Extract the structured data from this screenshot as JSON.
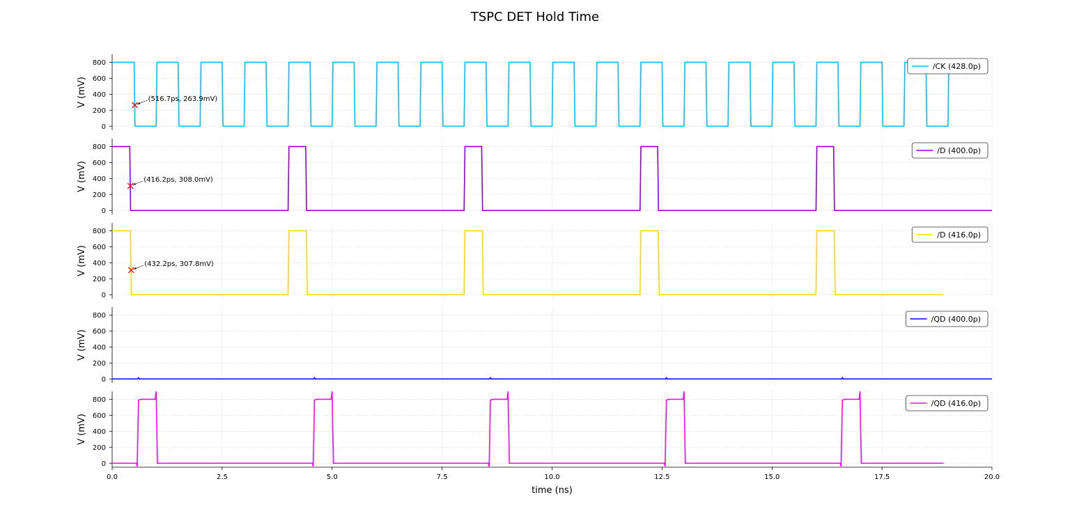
{
  "title": "TSPC DET Hold Time",
  "chart_data": [
    {
      "type": "line",
      "ylabel": "V (mV)",
      "xlim": [
        0,
        20
      ],
      "ylim": [
        -50,
        900
      ],
      "yticks": [
        0,
        200,
        400,
        600,
        800
      ],
      "xticks": [
        0,
        2.5,
        5,
        7.5,
        10,
        12.5,
        15,
        17.5,
        20
      ],
      "grid": true,
      "legend": "upper right",
      "x": [
        0,
        0.5,
        0.52,
        1,
        1.02,
        1.5,
        1.52,
        2,
        2.02,
        2.5,
        2.52,
        3,
        3.02,
        3.5,
        3.52,
        4,
        4.02,
        4.5,
        4.52,
        5,
        5.02,
        5.5,
        5.52,
        6,
        6.02,
        6.5,
        6.52,
        7,
        7.02,
        7.5,
        7.52,
        8,
        8.02,
        8.5,
        8.52,
        9,
        9.02,
        9.5,
        9.52,
        10,
        10.02,
        10.5,
        10.52,
        11,
        11.02,
        11.5,
        11.52,
        12,
        12.02,
        12.5,
        12.52,
        13,
        13.02,
        13.5,
        13.52,
        14,
        14.02,
        14.5,
        14.52,
        15,
        15.02,
        15.5,
        15.52,
        16,
        16.02,
        16.5,
        16.52,
        17,
        17.02,
        17.5,
        17.52,
        18,
        18.02,
        18.5,
        18.52,
        19,
        19.02
      ],
      "series": [
        {
          "name": "/CK (428.0p)",
          "color": "#00bfff",
          "values": [
            800,
            800,
            0,
            0,
            800,
            800,
            0,
            0,
            800,
            800,
            0,
            0,
            800,
            800,
            0,
            0,
            800,
            800,
            0,
            0,
            800,
            800,
            0,
            0,
            800,
            800,
            0,
            0,
            800,
            800,
            0,
            0,
            800,
            800,
            0,
            0,
            800,
            800,
            0,
            0,
            800,
            800,
            0,
            0,
            800,
            800,
            0,
            0,
            800,
            800,
            0,
            0,
            800,
            800,
            0,
            0,
            800,
            800,
            0,
            0,
            800,
            800,
            0,
            0,
            800,
            800,
            0,
            0,
            800,
            800,
            0,
            0,
            800,
            800,
            0,
            0,
            800
          ]
        }
      ],
      "annotations": [
        {
          "text": "(516.7ps, 263.9mV)",
          "x": 0.5167,
          "y": 263.9
        }
      ]
    },
    {
      "type": "line",
      "ylabel": "V (mV)",
      "xlim": [
        0,
        20
      ],
      "ylim": [
        -50,
        900
      ],
      "yticks": [
        0,
        200,
        400,
        600,
        800
      ],
      "xticks": [
        0,
        2.5,
        5,
        7.5,
        10,
        12.5,
        15,
        17.5,
        20
      ],
      "grid": true,
      "legend": "upper right",
      "x": [
        0,
        0.4,
        0.42,
        4,
        4.02,
        4.4,
        4.42,
        8,
        8.02,
        8.4,
        8.42,
        12,
        12.02,
        12.4,
        12.42,
        16,
        16.02,
        16.4,
        16.42,
        20
      ],
      "series": [
        {
          "name": "/D (400.0p)",
          "color": "#9400d3",
          "values": [
            800,
            800,
            0,
            0,
            800,
            800,
            0,
            0,
            800,
            800,
            0,
            0,
            800,
            800,
            0,
            0,
            800,
            800,
            0,
            0
          ]
        }
      ],
      "annotations": [
        {
          "text": "(416.2ps, 308.0mV)",
          "x": 0.4162,
          "y": 308.0
        }
      ]
    },
    {
      "type": "line",
      "ylabel": "V (mV)",
      "xlim": [
        0,
        20
      ],
      "ylim": [
        -50,
        900
      ],
      "yticks": [
        0,
        200,
        400,
        600,
        800
      ],
      "xticks": [
        0,
        2.5,
        5,
        7.5,
        10,
        12.5,
        15,
        17.5,
        20
      ],
      "grid": true,
      "legend": "upper right",
      "x": [
        0,
        0.416,
        0.436,
        4,
        4.02,
        4.416,
        4.436,
        8,
        8.02,
        8.416,
        8.436,
        12,
        12.02,
        12.416,
        12.436,
        16,
        16.02,
        16.416,
        16.436,
        18.9
      ],
      "series": [
        {
          "name": "/D (416.0p)",
          "color": "#ffd700",
          "values": [
            800,
            800,
            0,
            0,
            800,
            800,
            0,
            0,
            800,
            800,
            0,
            0,
            800,
            800,
            0,
            0,
            800,
            800,
            0,
            0
          ]
        }
      ],
      "annotations": [
        {
          "text": "(432.2ps, 307.8mV)",
          "x": 0.4322,
          "y": 307.8
        }
      ]
    },
    {
      "type": "line",
      "ylabel": "V (mV)",
      "xlim": [
        0,
        20
      ],
      "ylim": [
        -50,
        900
      ],
      "yticks": [
        0,
        200,
        400,
        600,
        800
      ],
      "xticks": [
        0,
        2.5,
        5,
        7.5,
        10,
        12.5,
        15,
        17.5,
        20
      ],
      "grid": true,
      "legend": "upper right",
      "x": [
        0,
        0.58,
        0.6,
        0.62,
        4.58,
        4.6,
        4.62,
        8.58,
        8.6,
        8.62,
        12.58,
        12.6,
        12.62,
        16.58,
        16.6,
        16.62,
        20
      ],
      "series": [
        {
          "name": "/QD (400.0p)",
          "color": "#0000ff",
          "values": [
            0,
            0,
            15,
            0,
            0,
            15,
            0,
            0,
            15,
            0,
            0,
            15,
            0,
            0,
            15,
            0,
            0
          ]
        }
      ]
    },
    {
      "type": "line",
      "ylabel": "V (mV)",
      "xlabel": "time (ns)",
      "xlim": [
        0,
        20
      ],
      "ylim": [
        -50,
        900
      ],
      "yticks": [
        0,
        200,
        400,
        600,
        800
      ],
      "xticks": [
        {
          "value": 0,
          "label": "0.0"
        },
        {
          "value": 2.5,
          "label": "2.5"
        },
        {
          "value": 5,
          "label": "5.0"
        },
        {
          "value": 7.5,
          "label": "7.5"
        },
        {
          "value": 10,
          "label": "10.0"
        },
        {
          "value": 12.5,
          "label": "12.5"
        },
        {
          "value": 15,
          "label": "15.0"
        },
        {
          "value": 17.5,
          "label": "17.5"
        },
        {
          "value": 20,
          "label": "20.0"
        }
      ],
      "grid": true,
      "legend": "upper right",
      "x": [
        0,
        0.55,
        0.57,
        0.6,
        0.65,
        0.98,
        1,
        1.03,
        4.55,
        4.57,
        4.6,
        4.65,
        4.98,
        5,
        5.03,
        8.55,
        8.57,
        8.6,
        8.65,
        8.98,
        9,
        9.03,
        12.55,
        12.57,
        12.6,
        12.65,
        12.98,
        13,
        13.03,
        16.55,
        16.57,
        16.6,
        16.65,
        16.98,
        17,
        17.03,
        18.9
      ],
      "series": [
        {
          "name": "/QD (416.0p)",
          "color": "#ff00ff",
          "values": [
            0,
            0,
            -40,
            790,
            800,
            800,
            900,
            0,
            0,
            -40,
            790,
            800,
            800,
            900,
            0,
            0,
            -40,
            790,
            800,
            800,
            900,
            0,
            0,
            -40,
            790,
            800,
            800,
            900,
            0,
            0,
            -40,
            790,
            800,
            800,
            900,
            0,
            0
          ]
        }
      ]
    }
  ]
}
